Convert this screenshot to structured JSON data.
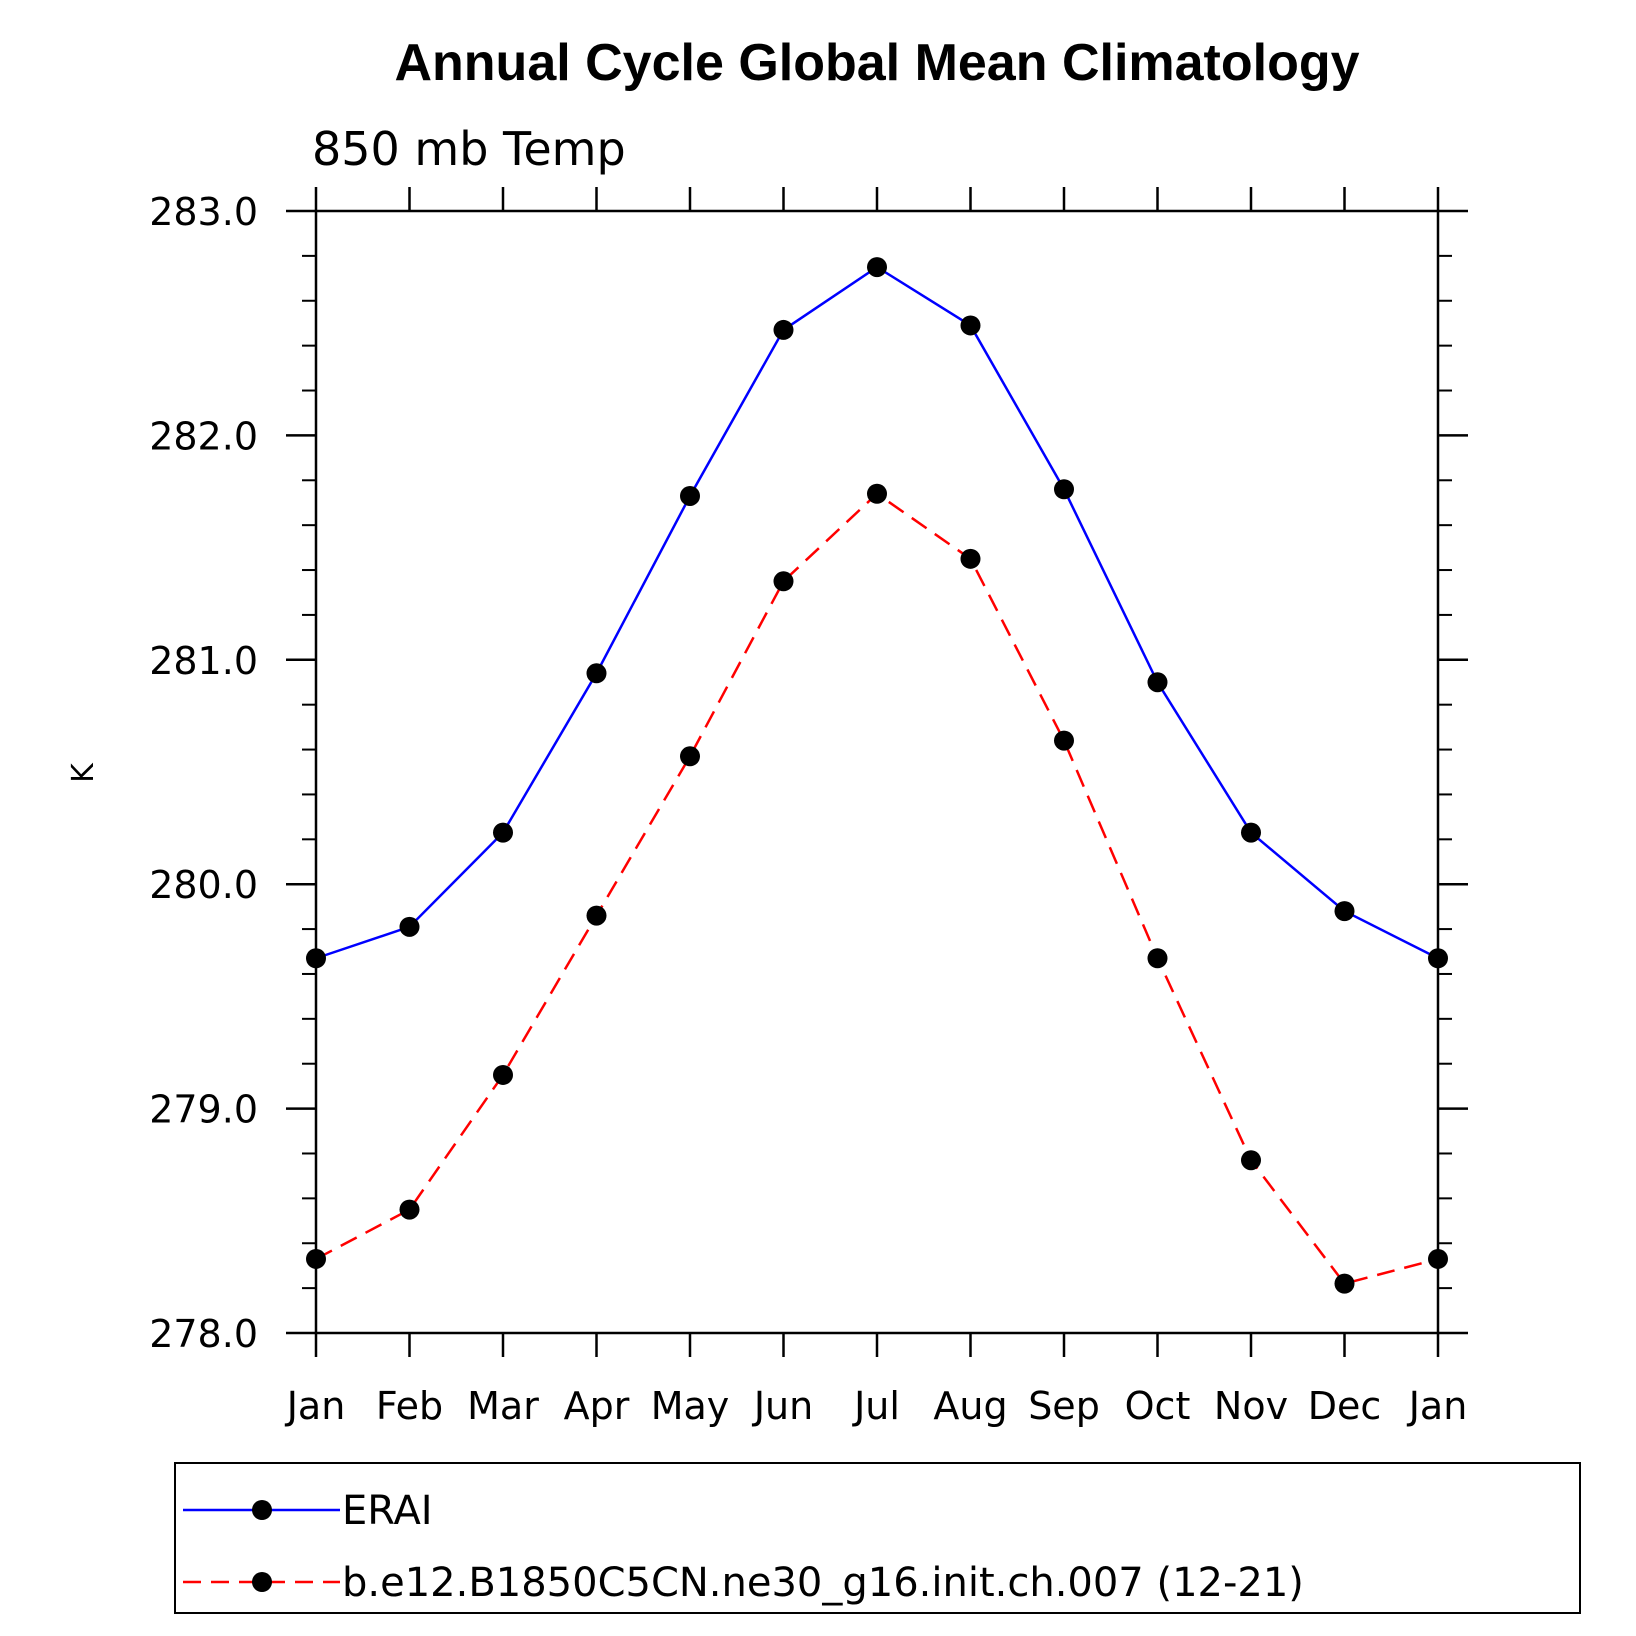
{
  "chart_data": {
    "type": "line",
    "title": "Annual Cycle Global Mean Climatology",
    "subtitle": "850 mb Temp",
    "xlabel": "",
    "ylabel": "K",
    "categories": [
      "Jan",
      "Feb",
      "Mar",
      "Apr",
      "May",
      "Jun",
      "Jul",
      "Aug",
      "Sep",
      "Oct",
      "Nov",
      "Dec",
      "Jan"
    ],
    "ylim": [
      278.0,
      283.0
    ],
    "yticks": [
      "278.0",
      "279.0",
      "280.0",
      "281.0",
      "282.0",
      "283.0"
    ],
    "legend_position": "bottom",
    "series": [
      {
        "name": "ERAI",
        "color": "#0000ff",
        "style": "solid",
        "marker": "filled-circle",
        "values": [
          279.67,
          279.81,
          280.23,
          280.94,
          281.73,
          282.47,
          282.75,
          282.49,
          281.76,
          280.9,
          280.23,
          279.88,
          279.67
        ]
      },
      {
        "name": "b.e12.B1850C5CN.ne30_g16.init.ch.007 (12-21)",
        "color": "#ff0000",
        "style": "dashed",
        "marker": "filled-circle",
        "values": [
          278.33,
          278.55,
          279.15,
          279.86,
          280.57,
          281.35,
          281.74,
          281.45,
          280.64,
          279.67,
          278.77,
          278.22,
          278.33
        ]
      }
    ]
  }
}
